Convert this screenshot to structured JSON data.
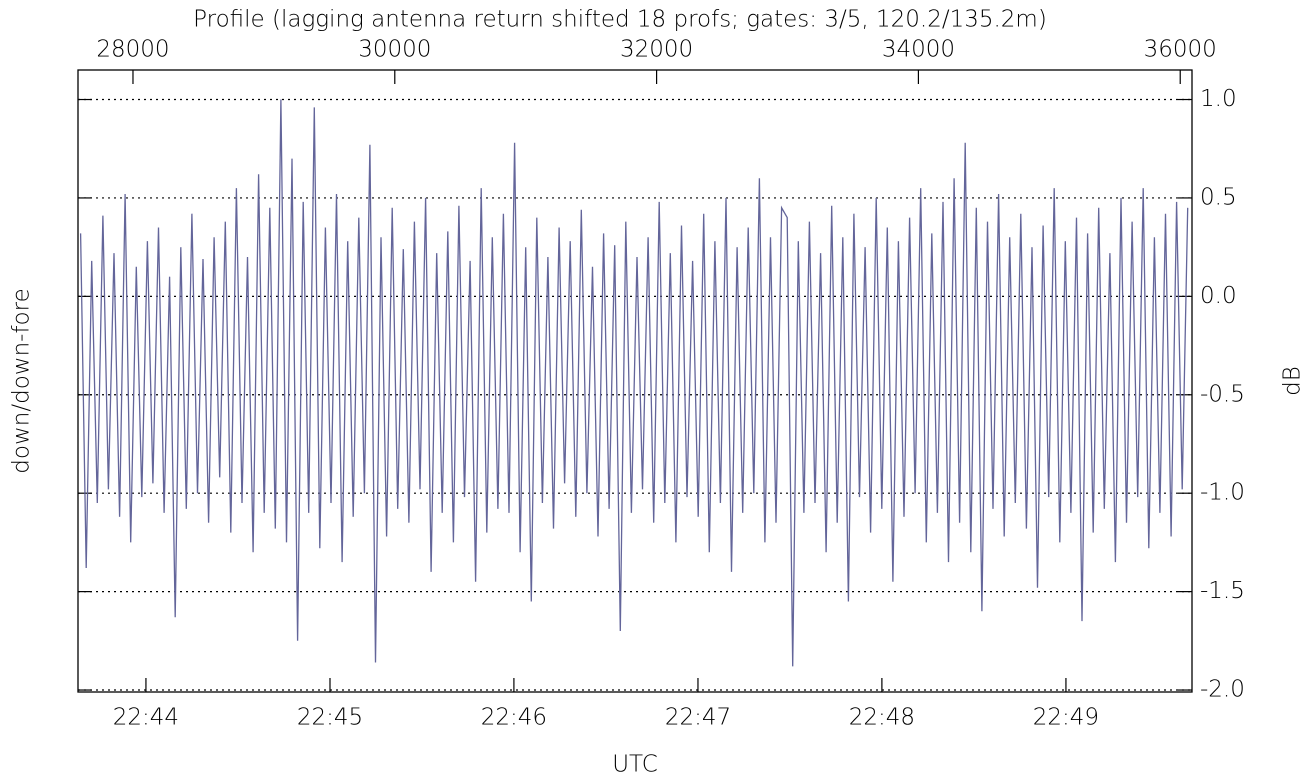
{
  "chart_data": {
    "type": "line",
    "title": "Profile (lagging antenna return shifted 18 profs; gates: 3/5, 120.2/135.2m)",
    "x2_label": "UTC",
    "y_label": "down/down-fore",
    "y2_label": "dB",
    "xlim": [
      27580,
      36090
    ],
    "xticks": [
      28000,
      30000,
      32000,
      34000,
      36000
    ],
    "x2ticks": [
      {
        "value": 28099,
        "label": "22:44"
      },
      {
        "value": 29505,
        "label": "22:45"
      },
      {
        "value": 30910,
        "label": "22:46"
      },
      {
        "value": 32316,
        "label": "22:47"
      },
      {
        "value": 33721,
        "label": "22:48"
      },
      {
        "value": 35127,
        "label": "22:49"
      }
    ],
    "ylim": [
      -2.01,
      1.15
    ],
    "yticks": [
      {
        "value": 1,
        "label": "1.0"
      },
      0.5,
      {
        "value": 0,
        "label": "0.0"
      },
      -0.5,
      {
        "value": -1,
        "label": "-1.0"
      },
      -1.5,
      {
        "value": -2,
        "label": "-2.0"
      }
    ],
    "grid": true,
    "color": "#63659a",
    "x": [
      27600,
      27642.5,
      27685,
      27727.5,
      27770,
      27812.5,
      27855,
      27897.5,
      27940,
      27982.5,
      28025,
      28067.5,
      28110,
      28152.5,
      28195,
      28237.5,
      28280,
      28322.5,
      28365,
      28407.5,
      28450,
      28492.5,
      28535,
      28577.5,
      28620,
      28662.5,
      28705,
      28747.5,
      28790,
      28832.5,
      28875,
      28917.5,
      28960,
      29002.5,
      29045,
      29087.5,
      29130,
      29172.5,
      29215,
      29257.5,
      29300,
      29342.5,
      29385,
      29427.5,
      29470,
      29512.5,
      29555,
      29597.5,
      29640,
      29682.5,
      29725,
      29767.5,
      29810,
      29852.5,
      29895,
      29937.5,
      29980,
      30022.5,
      30065,
      30107.5,
      30150,
      30192.5,
      30235,
      30277.5,
      30320,
      30362.5,
      30405,
      30447.5,
      30490,
      30532.5,
      30575,
      30617.5,
      30660,
      30702.5,
      30745,
      30787.5,
      30830,
      30872.5,
      30915,
      30957.5,
      31000,
      31042.5,
      31085,
      31127.5,
      31170,
      31212.5,
      31255,
      31297.5,
      31340,
      31382.5,
      31425,
      31467.5,
      31510,
      31552.5,
      31595,
      31637.5,
      31680,
      31722.5,
      31765,
      31807.5,
      31850,
      31892.5,
      31935,
      31977.5,
      32020,
      32062.5,
      32105,
      32147.5,
      32190,
      32232.5,
      32275,
      32317.5,
      32360,
      32402.5,
      32445,
      32487.5,
      32530,
      32572.5,
      32615,
      32657.5,
      32700,
      32742.5,
      32785,
      32827.5,
      32870,
      32912.5,
      32955,
      32997.5,
      33040,
      33082.5,
      33125,
      33167.5,
      33210,
      33252.5,
      33295,
      33337.5,
      33380,
      33422.5,
      33465,
      33507.5,
      33550,
      33592.5,
      33635,
      33677.5,
      33720,
      33762.5,
      33805,
      33847.5,
      33890,
      33932.5,
      33975,
      34017.5,
      34060,
      34102.5,
      34145,
      34187.5,
      34230,
      34272.5,
      34315,
      34357.5,
      34400,
      34442.5,
      34485,
      34527.5,
      34570,
      34612.5,
      34655,
      34697.5,
      34740,
      34782.5,
      34825,
      34867.5,
      34910,
      34952.5,
      34995,
      35037.5,
      35080,
      35122.5,
      35165,
      35207.5,
      35250,
      35292.5,
      35335,
      35377.5,
      35420,
      35462.5,
      35505,
      35547.5,
      35590,
      35632.5,
      35675,
      35717.5,
      35760,
      35802.5,
      35845,
      35887.5,
      35930,
      35972.5,
      36015,
      36057.5
    ],
    "values": [
      0.32,
      -1.38,
      0.18,
      -1.05,
      0.41,
      -0.98,
      0.22,
      -1.12,
      0.52,
      -1.25,
      0.15,
      -1.02,
      0.28,
      -0.95,
      0.35,
      -1.1,
      0.1,
      -1.63,
      0.25,
      -1.08,
      0.42,
      -1.0,
      0.19,
      -1.15,
      0.3,
      -0.92,
      0.38,
      -1.2,
      0.55,
      -1.05,
      0.2,
      -1.3,
      0.62,
      -1.1,
      0.45,
      -1.18,
      1.0,
      -1.25,
      0.7,
      -1.75,
      0.48,
      -1.1,
      0.96,
      -1.28,
      0.35,
      -1.05,
      0.52,
      -1.35,
      0.28,
      -1.12,
      0.4,
      -1.0,
      0.77,
      -1.86,
      0.3,
      -1.22,
      0.45,
      -1.08,
      0.24,
      -1.15,
      0.38,
      -0.98,
      0.5,
      -1.4,
      0.22,
      -1.1,
      0.33,
      -1.25,
      0.46,
      -1.02,
      0.18,
      -1.45,
      0.55,
      -1.2,
      0.3,
      -1.08,
      0.42,
      -1.1,
      0.78,
      -1.3,
      0.25,
      -1.55,
      0.4,
      -1.05,
      0.2,
      -1.18,
      0.35,
      -0.95,
      0.28,
      -1.12,
      0.44,
      -1.0,
      0.15,
      -1.22,
      0.32,
      -1.08,
      0.26,
      -1.7,
      0.38,
      -1.1,
      0.2,
      -0.98,
      0.3,
      -1.15,
      0.48,
      -1.05,
      0.22,
      -1.25,
      0.36,
      -1.02,
      0.18,
      -1.12,
      0.42,
      -1.3,
      0.28,
      -1.05,
      0.5,
      -1.4,
      0.25,
      -1.1,
      0.35,
      -1.0,
      0.6,
      -1.25,
      0.3,
      -1.15,
      0.45,
      0.4,
      -1.88,
      0.28,
      -1.1,
      0.38,
      -1.05,
      0.22,
      -1.3,
      0.46,
      -1.15,
      0.3,
      -1.55,
      0.42,
      -1.02,
      0.25,
      -1.2,
      0.5,
      -1.08,
      0.35,
      -1.45,
      0.28,
      -1.12,
      0.4,
      -1.0,
      0.55,
      -1.25,
      0.32,
      -1.1,
      0.48,
      -1.35,
      0.6,
      -1.15,
      0.78,
      -1.3,
      0.45,
      -1.6,
      0.38,
      -1.08,
      0.52,
      -1.22,
      0.3,
      -1.05,
      0.42,
      -1.18,
      0.25,
      -1.48,
      0.36,
      -1.02,
      0.55,
      -1.25,
      0.28,
      -1.1,
      0.4,
      -1.65,
      0.32,
      -1.2,
      0.45,
      -1.08,
      0.22,
      -1.35,
      0.5,
      -1.15,
      0.38,
      -1.02,
      0.55,
      -1.28,
      0.3,
      -1.1,
      0.42,
      -1.22,
      0.48,
      -0.98,
      0.45
    ]
  }
}
